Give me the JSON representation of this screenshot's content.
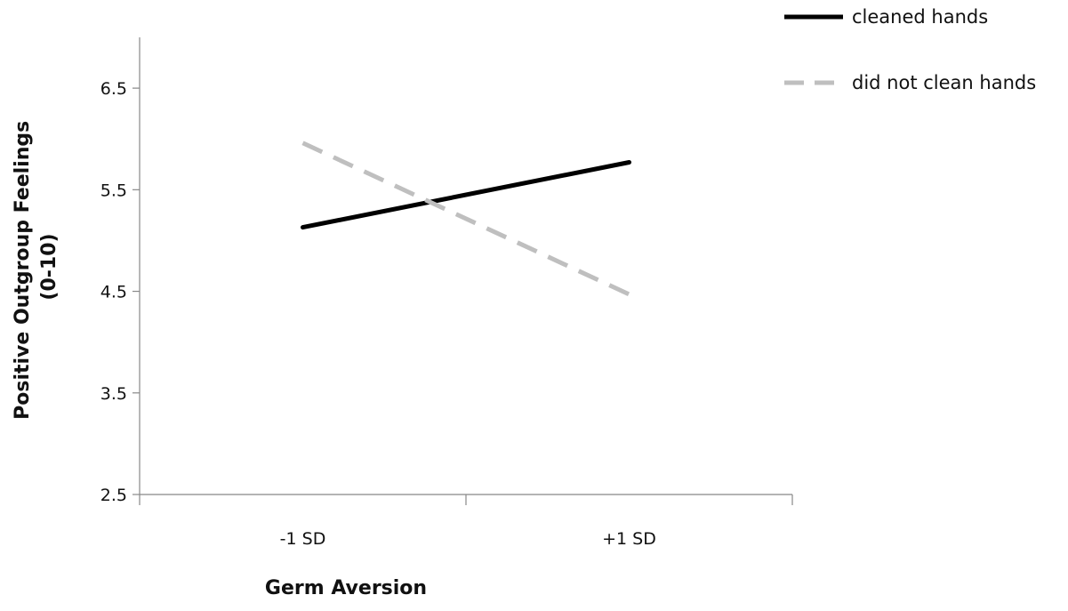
{
  "chart_data": {
    "type": "line",
    "title": "",
    "xlabel": "Germ Aversion",
    "ylabel_lines": [
      "Positive Outgroup Feelings",
      "(0-10)"
    ],
    "categories": [
      "-1 SD",
      "+1 SD"
    ],
    "yticks": [
      "2.5",
      "3.5",
      "4.5",
      "5.5",
      "6.5"
    ],
    "ylim": [
      2.5,
      7.0
    ],
    "grid": false,
    "legend_position": "top-right",
    "series": [
      {
        "name": "cleaned hands",
        "values": [
          5.13,
          5.77
        ],
        "color": "#000000",
        "style": "solid"
      },
      {
        "name": "did not clean hands",
        "values": [
          5.96,
          4.47
        ],
        "color": "#bfbfbf",
        "style": "dashed"
      }
    ]
  }
}
